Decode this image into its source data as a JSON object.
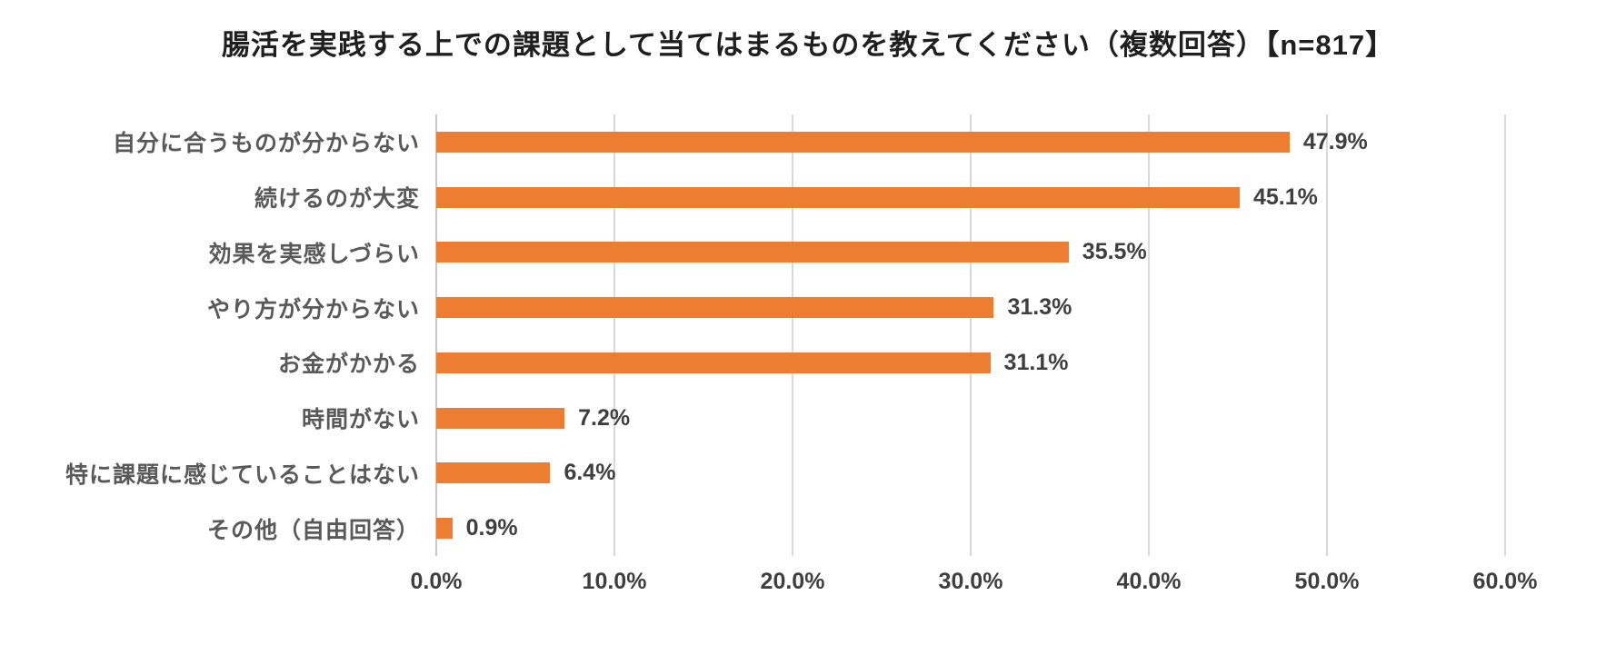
{
  "title": "腸活を実践する上での課題として当てはまるものを教えてください（複数回答）【n=817】",
  "chart_data": {
    "type": "bar",
    "orientation": "horizontal",
    "title": "腸活を実践する上での課題として当てはまるものを教えてください（複数回答）【n=817】",
    "sample_size_label": "n=817",
    "categories": [
      "自分に合うものが分からない",
      "続けるのが大変",
      "効果を実感しづらい",
      "やり方が分からない",
      "お金がかかる",
      "時間がない",
      "特に課題に感じていることはない",
      "その他（自由回答）"
    ],
    "values": [
      47.9,
      45.1,
      35.5,
      31.3,
      31.1,
      7.2,
      6.4,
      0.9
    ],
    "value_labels": [
      "47.9%",
      "45.1%",
      "35.5%",
      "31.3%",
      "31.1%",
      "7.2%",
      "6.4%",
      "0.9%"
    ],
    "x_ticks": [
      "0.0%",
      "10.0%",
      "20.0%",
      "30.0%",
      "40.0%",
      "50.0%",
      "60.0%"
    ],
    "xlim": [
      0,
      60
    ],
    "xlabel": "",
    "ylabel": "",
    "grid": "vertical-gridlines",
    "legend": "none",
    "colors": {
      "bar": "#ed7d31",
      "gridline": "#d9d9d9",
      "axis_line": "#c8c8c8",
      "title_text": "#1f1f1f",
      "category_text": "#595959",
      "value_text": "#3f3f3f",
      "tick_text": "#3f3f3f",
      "background": "#ffffff"
    }
  }
}
